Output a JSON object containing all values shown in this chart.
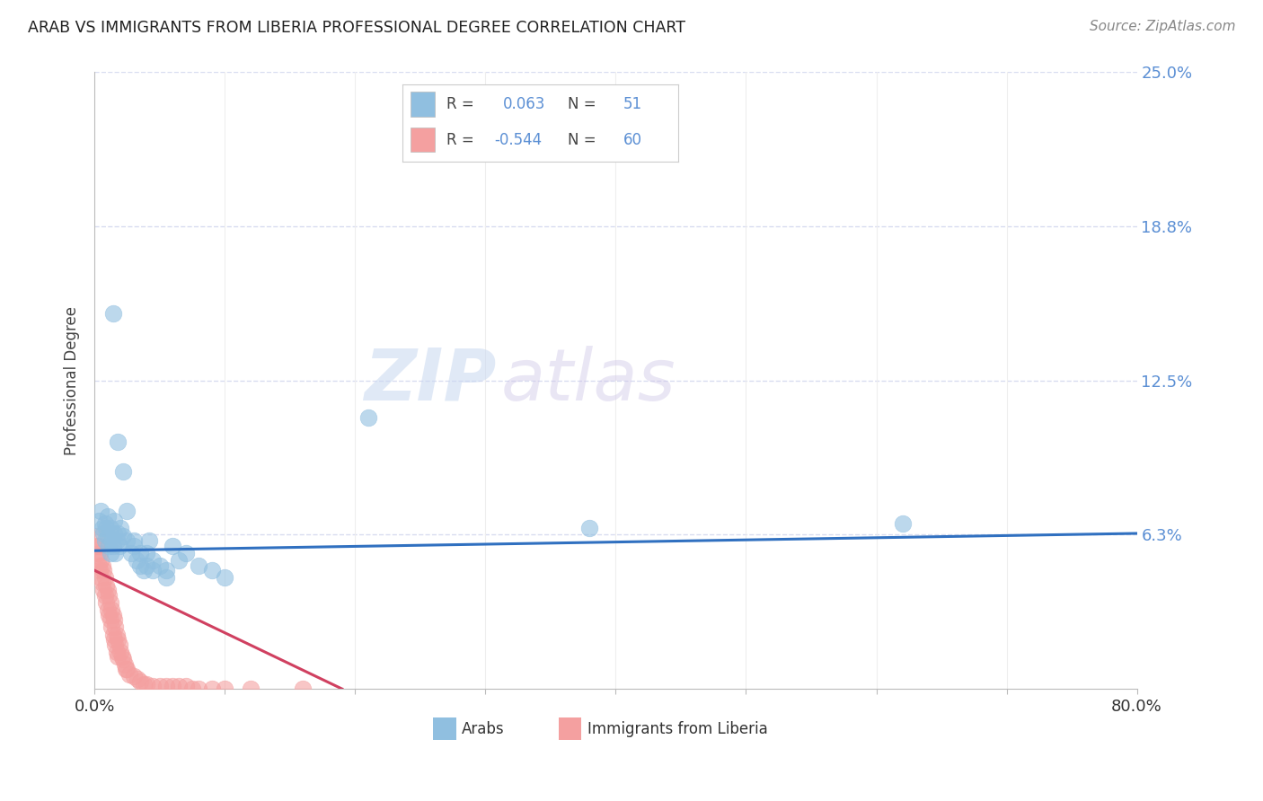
{
  "title": "ARAB VS IMMIGRANTS FROM LIBERIA PROFESSIONAL DEGREE CORRELATION CHART",
  "source": "Source: ZipAtlas.com",
  "ylabel": "Professional Degree",
  "xlim": [
    0.0,
    0.8
  ],
  "ylim": [
    0.0,
    0.25
  ],
  "ytick_vals": [
    0.0625,
    0.125,
    0.1875,
    0.25
  ],
  "ytick_labels": [
    "6.3%",
    "12.5%",
    "18.8%",
    "25.0%"
  ],
  "xtick_vals": [
    0.0,
    0.1,
    0.2,
    0.3,
    0.4,
    0.5,
    0.6,
    0.7,
    0.8
  ],
  "xtick_labels": [
    "0.0%",
    "",
    "",
    "",
    "",
    "",
    "",
    "",
    "80.0%"
  ],
  "blue_color": "#90BFE0",
  "pink_color": "#F4A0A0",
  "trend_blue": "#3070C0",
  "trend_pink": "#D04060",
  "label_color": "#5B8FD4",
  "watermark": "ZIPatlas",
  "background_color": "#FFFFFF",
  "grid_color": "#D8DCF0",
  "arab_x": [
    0.003,
    0.005,
    0.006,
    0.007,
    0.008,
    0.008,
    0.009,
    0.01,
    0.01,
    0.011,
    0.012,
    0.012,
    0.013,
    0.014,
    0.015,
    0.015,
    0.016,
    0.017,
    0.018,
    0.019,
    0.02,
    0.022,
    0.025,
    0.028,
    0.03,
    0.032,
    0.035,
    0.038,
    0.04,
    0.042,
    0.045,
    0.05,
    0.055,
    0.06,
    0.065,
    0.07,
    0.08,
    0.09,
    0.1,
    0.014,
    0.018,
    0.022,
    0.025,
    0.03,
    0.035,
    0.04,
    0.045,
    0.055,
    0.21,
    0.38,
    0.62
  ],
  "arab_y": [
    0.068,
    0.072,
    0.065,
    0.063,
    0.067,
    0.06,
    0.065,
    0.07,
    0.062,
    0.058,
    0.065,
    0.055,
    0.06,
    0.058,
    0.063,
    0.068,
    0.055,
    0.06,
    0.063,
    0.058,
    0.065,
    0.062,
    0.06,
    0.055,
    0.058,
    0.052,
    0.05,
    0.048,
    0.055,
    0.06,
    0.052,
    0.05,
    0.048,
    0.058,
    0.052,
    0.055,
    0.05,
    0.048,
    0.045,
    0.152,
    0.1,
    0.088,
    0.072,
    0.06,
    0.055,
    0.05,
    0.048,
    0.045,
    0.11,
    0.065,
    0.067
  ],
  "liberia_x": [
    0.001,
    0.002,
    0.002,
    0.003,
    0.003,
    0.004,
    0.004,
    0.005,
    0.005,
    0.006,
    0.006,
    0.007,
    0.007,
    0.008,
    0.008,
    0.009,
    0.009,
    0.01,
    0.01,
    0.011,
    0.011,
    0.012,
    0.012,
    0.013,
    0.013,
    0.014,
    0.014,
    0.015,
    0.015,
    0.016,
    0.016,
    0.017,
    0.017,
    0.018,
    0.018,
    0.019,
    0.02,
    0.021,
    0.022,
    0.023,
    0.024,
    0.025,
    0.027,
    0.03,
    0.033,
    0.035,
    0.038,
    0.04,
    0.045,
    0.05,
    0.055,
    0.06,
    0.065,
    0.07,
    0.075,
    0.08,
    0.09,
    0.1,
    0.12,
    0.16
  ],
  "liberia_y": [
    0.058,
    0.062,
    0.055,
    0.058,
    0.05,
    0.055,
    0.048,
    0.052,
    0.045,
    0.05,
    0.043,
    0.048,
    0.04,
    0.045,
    0.038,
    0.042,
    0.035,
    0.04,
    0.032,
    0.038,
    0.03,
    0.035,
    0.028,
    0.032,
    0.025,
    0.03,
    0.022,
    0.028,
    0.02,
    0.025,
    0.018,
    0.022,
    0.015,
    0.02,
    0.013,
    0.018,
    0.015,
    0.013,
    0.012,
    0.01,
    0.008,
    0.008,
    0.006,
    0.005,
    0.004,
    0.003,
    0.002,
    0.002,
    0.001,
    0.001,
    0.001,
    0.001,
    0.001,
    0.001,
    0.0,
    0.0,
    0.0,
    0.0,
    0.0,
    0.0
  ],
  "arab_trend_x": [
    0.0,
    0.8
  ],
  "arab_trend_y": [
    0.056,
    0.063
  ],
  "lib_trend_x": [
    0.0,
    0.19
  ],
  "lib_trend_y": [
    0.048,
    0.0
  ],
  "legend_R_arab": "0.063",
  "legend_N_arab": "51",
  "legend_R_lib": "-0.544",
  "legend_N_lib": "60",
  "bottom_legend_arab": "Arabs",
  "bottom_legend_lib": "Immigrants from Liberia"
}
